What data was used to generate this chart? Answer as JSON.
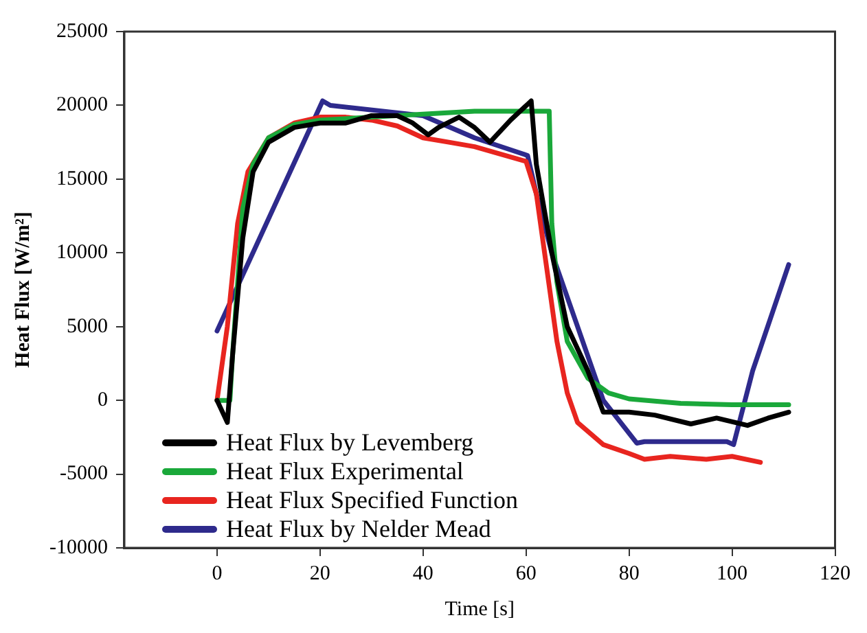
{
  "chart_data": {
    "type": "line",
    "xlabel": "Time [s]",
    "ylabel": "Heat Flux [W/m²]",
    "xlim": [
      -18,
      120
    ],
    "xticks": [
      0,
      20,
      40,
      60,
      80,
      100,
      120
    ],
    "ylim": [
      -10000,
      25000
    ],
    "yticks": [
      -10000,
      -5000,
      0,
      5000,
      10000,
      15000,
      20000,
      25000
    ],
    "grid": false,
    "legend": "bottom left",
    "marker": "none",
    "line_style": "solid",
    "series": [
      {
        "name": "Heat Flux by Levemberg",
        "color": "#000000",
        "x": [
          0,
          2,
          3,
          5,
          7,
          10,
          15,
          20,
          25,
          30,
          35,
          38,
          41,
          43,
          47,
          50,
          53,
          57,
          61,
          62,
          65,
          68,
          72,
          75,
          80,
          85,
          92,
          97,
          103,
          107,
          111
        ],
        "values": [
          0,
          -1500,
          3000,
          11000,
          15500,
          17500,
          18500,
          18800,
          18800,
          19300,
          19300,
          18800,
          18000,
          18500,
          19200,
          18500,
          17500,
          19000,
          20300,
          16000,
          10000,
          5000,
          2000,
          -800,
          -800,
          -1000,
          -1600,
          -1200,
          -1700,
          -1200,
          -800
        ]
      },
      {
        "name": "Heat Flux Experimental",
        "color": "#1aa83a",
        "x": [
          0,
          2.5,
          3,
          5,
          7,
          10,
          15,
          20,
          30,
          40,
          50,
          60,
          64.5,
          65,
          66,
          68,
          72,
          76,
          80,
          90,
          100,
          111
        ],
        "values": [
          0,
          0,
          3000,
          13000,
          16000,
          17800,
          18700,
          19000,
          19200,
          19400,
          19600,
          19600,
          19600,
          12000,
          8000,
          4000,
          1500,
          500,
          100,
          -200,
          -300,
          -300
        ]
      },
      {
        "name": "Heat Flux Specified Function",
        "color": "#e8251f",
        "x": [
          0,
          2,
          4,
          6,
          10,
          15,
          20,
          25,
          30,
          35,
          40,
          45,
          50,
          55,
          60,
          62,
          64,
          66,
          68,
          70,
          75,
          80,
          83,
          88,
          95,
          100,
          105.5
        ],
        "values": [
          0,
          5000,
          12000,
          15500,
          17800,
          18800,
          19200,
          19200,
          19000,
          18600,
          17800,
          17500,
          17200,
          16700,
          16200,
          14000,
          9000,
          4000,
          500,
          -1500,
          -3000,
          -3600,
          -4000,
          -3800,
          -4000,
          -3800,
          -4200
        ]
      },
      {
        "name": "Heat Flux by Nelder Mead",
        "color": "#2e2a8c",
        "x": [
          0,
          20.5,
          22,
          40,
          50,
          60.3,
          62,
          65,
          70,
          75,
          81.5,
          83,
          99,
          100.3,
          104,
          111
        ],
        "values": [
          4700,
          20300,
          20000,
          19300,
          17800,
          16600,
          14000,
          10000,
          5000,
          0,
          -2900,
          -2800,
          -2800,
          -3000,
          2000,
          9200
        ]
      }
    ]
  }
}
